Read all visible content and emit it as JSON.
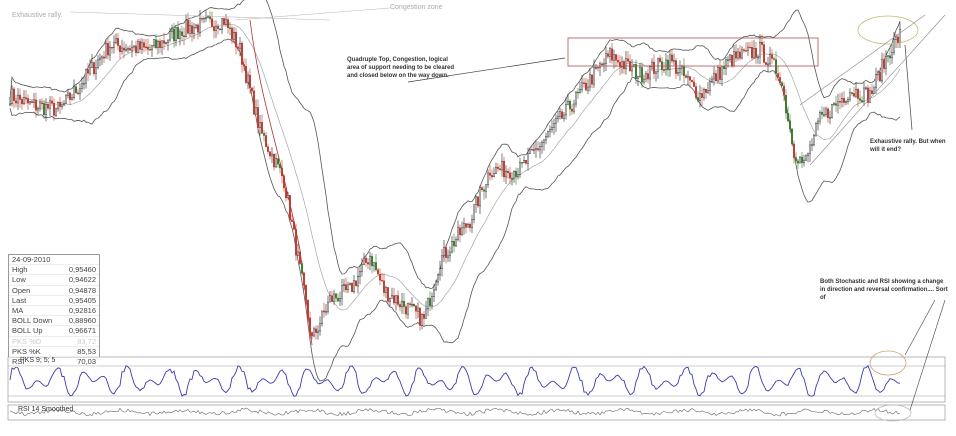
{
  "annotations": {
    "top_left": "Exhaustive rally.",
    "top_center": "Congestion zone",
    "quadruple_top": "Quadruple Top, Congestion, logical area of support needing to be cleared and closed below on the way down.",
    "exhaustive": "Exhaustive rally. But when will it end?",
    "oscillators": "Both Stochastic and RSI showing a change in direction and reversal confirmation.... Sort of"
  },
  "info_box": {
    "date": "24-09-2010",
    "rows": [
      {
        "label": "High",
        "value": "0,95460"
      },
      {
        "label": "Low",
        "value": "0,94622"
      },
      {
        "label": "Open",
        "value": "0,94878"
      },
      {
        "label": "Last",
        "value": "0,95405"
      },
      {
        "label": "MA",
        "value": "0,92816"
      },
      {
        "label": "BOLL Down",
        "value": "0,88960"
      },
      {
        "label": "BOLL Up",
        "value": "0,96671"
      },
      {
        "label": "PKS %D",
        "value": "83,72"
      },
      {
        "label": "PKS %K",
        "value": "85,53"
      },
      {
        "label": "RSI",
        "value": "70,03"
      }
    ]
  },
  "panels": {
    "stoch_label": "PKS 9; 5; 5",
    "rsi_label": "RSI 14 Smoothed"
  },
  "colors": {
    "up": "#222222",
    "down": "#c0392b",
    "green": "#3a7a2a",
    "band": "#555555",
    "stoch": "#3b3bb0",
    "ma": "#b03030"
  },
  "chart_data": {
    "type": "candlestick",
    "title": "",
    "indicators": [
      "Bollinger Bands",
      "Moving Average",
      "Stochastic PKS 9;5;5",
      "RSI 14 Smoothed"
    ],
    "keypoints": [
      [
        0,
        0.892
      ],
      [
        10,
        0.881
      ],
      [
        25,
        0.875
      ],
      [
        35,
        0.904
      ],
      [
        50,
        0.951
      ],
      [
        70,
        0.945
      ],
      [
        85,
        0.968
      ],
      [
        107,
        0.98
      ],
      [
        115,
        0.945
      ],
      [
        125,
        0.851
      ],
      [
        137,
        0.793
      ],
      [
        145,
        0.688
      ],
      [
        151,
        0.606
      ],
      [
        160,
        0.653
      ],
      [
        170,
        0.664
      ],
      [
        180,
        0.705
      ],
      [
        187,
        0.664
      ],
      [
        200,
        0.641
      ],
      [
        207,
        0.629
      ],
      [
        215,
        0.699
      ],
      [
        230,
        0.746
      ],
      [
        240,
        0.805
      ],
      [
        255,
        0.805
      ],
      [
        275,
        0.863
      ],
      [
        290,
        0.91
      ],
      [
        300,
        0.939
      ],
      [
        315,
        0.916
      ],
      [
        330,
        0.933
      ],
      [
        345,
        0.892
      ],
      [
        360,
        0.933
      ],
      [
        375,
        0.945
      ],
      [
        385,
        0.916
      ],
      [
        392,
        0.828
      ],
      [
        397,
        0.81
      ],
      [
        405,
        0.863
      ],
      [
        420,
        0.898
      ],
      [
        430,
        0.892
      ],
      [
        440,
        0.945
      ],
      [
        445,
        0.962
      ]
    ]
  }
}
